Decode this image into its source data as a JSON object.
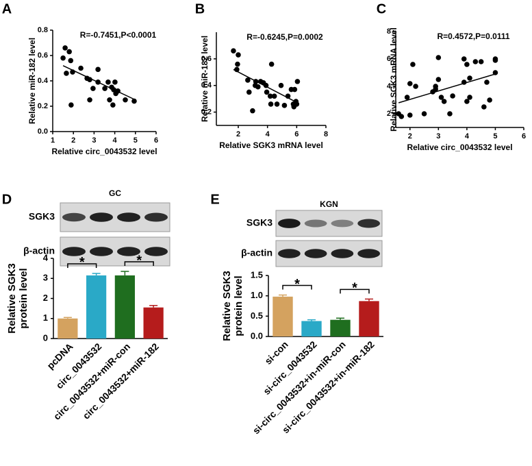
{
  "chart_data": [
    {
      "panel": "A",
      "type": "scatter",
      "annotation": "R=-0.7451,P<0.0001",
      "xlabel": "Relative circ_0043532 level",
      "ylabel": "Relative miR-182 level",
      "color": "#000000",
      "x": [
        1.6,
        1.5,
        1.8,
        1.87,
        1.66,
        1.96,
        1.89,
        2.36,
        2.66,
        2.79,
        2.95,
        2.79,
        3.19,
        3.19,
        3.52,
        3.68,
        3.75,
        3.85,
        3.95,
        4.01,
        4.05,
        3.91,
        4.15,
        4.51,
        4.94
      ],
      "y": [
        0.66,
        0.58,
        0.63,
        0.56,
        0.46,
        0.47,
        0.21,
        0.5,
        0.42,
        0.41,
        0.34,
        0.25,
        0.49,
        0.39,
        0.34,
        0.39,
        0.25,
        0.35,
        0.33,
        0.39,
        0.3,
        0.21,
        0.32,
        0.25,
        0.24
      ],
      "trendline": {
        "x": [
          1.5,
          5
        ],
        "y": [
          0.52,
          0.25
        ]
      },
      "xlim": [
        1,
        6
      ],
      "xticks": [
        1,
        2,
        3,
        4,
        5,
        6
      ],
      "ylim": [
        0,
        0.8
      ],
      "yticks": [
        {
          "value": 0,
          "label": "0.0"
        },
        0.2,
        0.4,
        0.6,
        0.8
      ]
    },
    {
      "panel": "B",
      "type": "scatter",
      "annotation": "R=-0.6245,P=0.0002",
      "xlabel": "Relative SGK3 mRNA level",
      "ylabel": "Relative miR-182 level",
      "color": "#000000",
      "x": [
        1.67,
        2,
        1.95,
        1.9,
        2.65,
        2.74,
        2.98,
        3.16,
        3.2,
        3.35,
        3.53,
        3.72,
        3.9,
        3.95,
        4.19,
        4.23,
        4.28,
        4.47,
        4.65,
        4.93,
        5.16,
        5.4,
        5.63,
        5.77,
        5.81,
        5.95,
        6,
        6.05,
        5.86
      ],
      "y": [
        0.66,
        0.63,
        0.56,
        0.52,
        0.44,
        0.35,
        0.21,
        0.4,
        0.43,
        0.39,
        0.43,
        0.42,
        0.4,
        0.35,
        0.32,
        0.26,
        0.56,
        0.32,
        0.26,
        0.4,
        0.25,
        0.32,
        0.37,
        0.26,
        0.24,
        0.28,
        0.26,
        0.43,
        0.37
      ],
      "trendline": {
        "x": [
          1.67,
          6.05
        ],
        "y": [
          0.52,
          0.27
        ]
      },
      "xlim": [
        0.5,
        8
      ],
      "xticks": [
        2,
        4,
        6,
        8
      ],
      "ylim": [
        0.1,
        0.8
      ],
      "yticks": [
        0.2,
        0.4,
        0.6
      ]
    },
    {
      "panel": "C",
      "type": "scatter",
      "annotation": "R=0.4572,P=0.0111",
      "xlabel": "Relative circ_0043532 level",
      "ylabel": "Relative SGK3 mRNA level",
      "color": "#000000",
      "x": [
        1.6,
        1.7,
        1.9,
        2.0,
        2.0,
        2.1,
        2.2,
        2.5,
        2.8,
        2.9,
        2.9,
        3.0,
        3.0,
        3.1,
        3.2,
        3.4,
        3.5,
        3.9,
        3.9,
        4.0,
        4.1,
        4.0,
        4.1,
        4.3,
        4.5,
        4.6,
        4.7,
        4.8,
        5.0,
        5.0,
        5.0
      ],
      "y": [
        2.0,
        1.8,
        3.2,
        1.9,
        4.2,
        5.6,
        4.0,
        2.0,
        3.6,
        4.0,
        3.8,
        4.5,
        6.1,
        3.2,
        2.9,
        2.0,
        3.3,
        4.3,
        6.0,
        5.6,
        3.2,
        2.9,
        4.6,
        5.8,
        5.8,
        2.5,
        4.3,
        3.0,
        5.0,
        5.9,
        6.0
      ],
      "trendline": {
        "x": [
          1.6,
          5.0
        ],
        "y": [
          2.8,
          4.9
        ]
      },
      "xlim": [
        1.5,
        6
      ],
      "xticks": [
        2,
        3,
        4,
        5,
        6
      ],
      "ylim": [
        1,
        8
      ],
      "yticks": [
        2,
        4,
        6,
        8
      ]
    },
    {
      "panel": "D",
      "type": "bar",
      "blot": {
        "title": "GC",
        "rows": [
          "SGK3",
          "β-actin"
        ]
      },
      "categories": [
        "pcDNA",
        "circ_0043532",
        "circ_0043532+miR-con",
        "circ_0043532+miR-182"
      ],
      "values": [
        1.0,
        3.15,
        3.15,
        1.55
      ],
      "errors": [
        0.05,
        0.1,
        0.2,
        0.1
      ],
      "colors": [
        "#d4a25f",
        "#2aa9c7",
        "#1f6e1f",
        "#b51c1c"
      ],
      "ylabel": [
        "Relative SGK3",
        "protein level"
      ],
      "ylim": [
        0,
        4
      ],
      "yticks": [
        0,
        1,
        2,
        3,
        4
      ],
      "significance": [
        "*",
        "*"
      ]
    },
    {
      "panel": "E",
      "type": "bar",
      "blot": {
        "title": "KGN",
        "rows": [
          "SGK3",
          "β-actin"
        ]
      },
      "categories": [
        "si-con",
        "si-circ_0043532",
        "si-circ_0043532+in-miR-con",
        "si-circ_0043532+in-miR-182"
      ],
      "values": [
        0.98,
        0.38,
        0.41,
        0.87
      ],
      "errors": [
        0.04,
        0.03,
        0.04,
        0.05
      ],
      "colors": [
        "#d4a25f",
        "#2aa9c7",
        "#1f6e1f",
        "#b51c1c"
      ],
      "ylabel": [
        "Relative SGK3",
        "protein level"
      ],
      "ylim": [
        0,
        1.5
      ],
      "yticks": [
        {
          "value": 0,
          "label": "0.0"
        },
        {
          "value": 0.5,
          "label": "0.5"
        },
        {
          "value": 1,
          "label": "1.0"
        },
        {
          "value": 1.5,
          "label": "1.5"
        }
      ],
      "significance": [
        "*",
        "*"
      ]
    }
  ]
}
